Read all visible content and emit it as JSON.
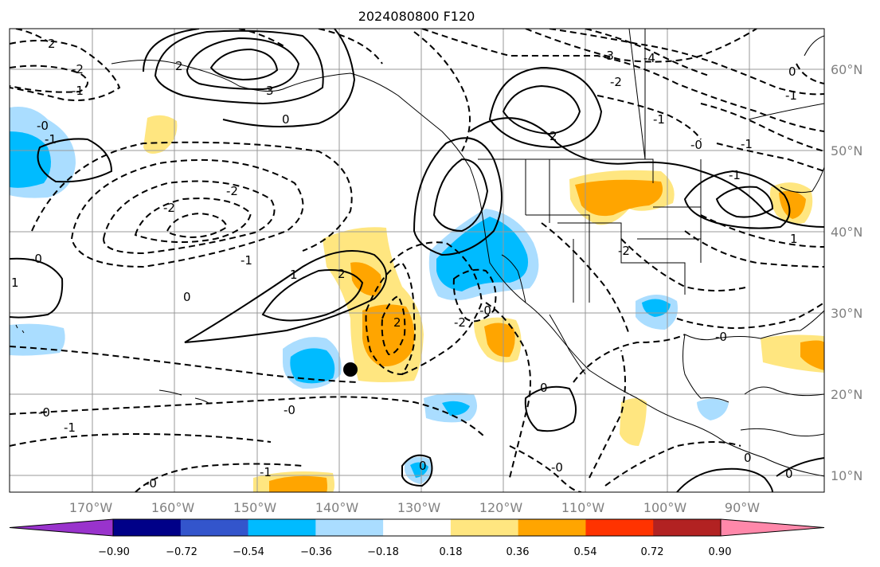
{
  "title": "2024080800 F120",
  "lon_labels": [
    "170°W",
    "160°W",
    "150°W",
    "140°W",
    "130°W",
    "120°W",
    "110°W",
    "100°W",
    "90°W"
  ],
  "lat_labels": [
    "60°N",
    "50°N",
    "40°N",
    "30°N",
    "20°N",
    "10°N"
  ],
  "colorbar": {
    "tick_labels": [
      "−0.90",
      "−0.72",
      "−0.54",
      "−0.36",
      "−0.18",
      "0.18",
      "0.36",
      "0.54",
      "0.72",
      "0.90"
    ],
    "colors": [
      "#9933cc",
      "#000088",
      "#3355cc",
      "#00bbff",
      "#aaddff",
      "#ffffff",
      "#ffe680",
      "#ffa500",
      "#ff3300",
      "#b22222",
      "#ff88aa"
    ]
  },
  "contour_labels": [
    "2",
    "2",
    "-1",
    "3",
    "0",
    "-0",
    "-1",
    "-2",
    "-2",
    "-2",
    "-1",
    "-0",
    "1",
    "2",
    "0",
    "2",
    "-0",
    "-0",
    "0",
    "-0",
    "-2",
    "-1",
    "-1",
    "0",
    "-0",
    "-0",
    "0",
    "-3",
    "-4",
    "-2",
    "-1",
    "2",
    "-1",
    "-0",
    "-1",
    "-2",
    "-0",
    "1",
    "0",
    "-2",
    "-1",
    "0",
    "1",
    "0"
  ],
  "marker": "typhoon-position-dot"
}
